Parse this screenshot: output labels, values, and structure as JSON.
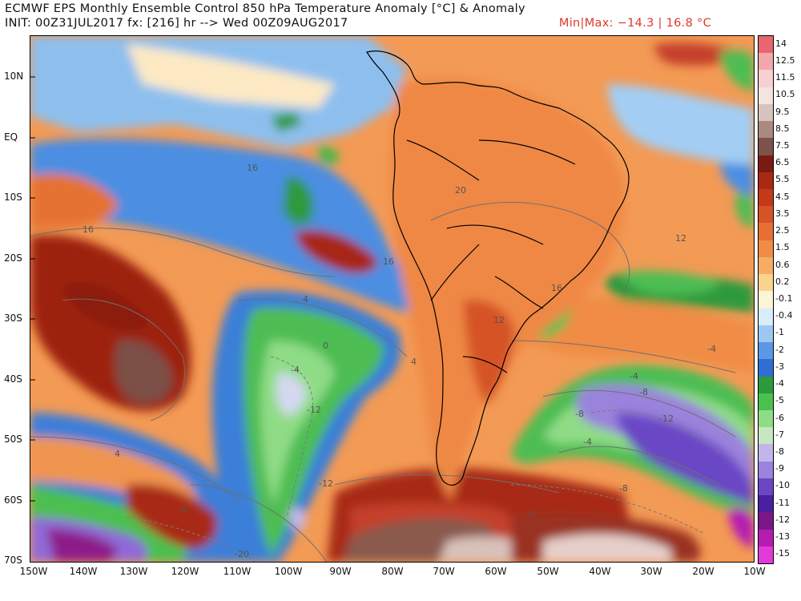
{
  "header": {
    "title": "ECMWF EPS Monthly Ensemble Control 850 hPa Temperature Anomaly [°C] & Anomaly",
    "subtitle": "INIT: 00Z31JUL2017  fx: [216] hr --> Wed 00Z09AUG2017",
    "minmax": "Min|Max: −14.3 | 16.8 °C"
  },
  "map": {
    "lat_labels": [
      "10N",
      "EQ",
      "10S",
      "20S",
      "30S",
      "40S",
      "50S",
      "60S",
      "70S"
    ],
    "lon_labels": [
      "150W",
      "140W",
      "130W",
      "120W",
      "110W",
      "100W",
      "90W",
      "80W",
      "70W",
      "60W",
      "50W",
      "40W",
      "30W",
      "20W",
      "10W"
    ],
    "contour_labels": [
      "16",
      "20",
      "16",
      "12",
      "16",
      "16",
      "4",
      "0",
      "-4",
      "12",
      "-4",
      "-8",
      "-12",
      "-4",
      "-4",
      "-8",
      "-12",
      "-20",
      "4",
      "-4",
      "-8",
      "-12",
      "4",
      "-8"
    ]
  },
  "colorbar": {
    "labels": [
      "14",
      "12.5",
      "11.5",
      "10.5",
      "9.5",
      "8.5",
      "7.5",
      "6.5",
      "5.5",
      "4.5",
      "3.5",
      "2.5",
      "1.5",
      "0.6",
      "0.2",
      "-0.1",
      "-0.4",
      "-1",
      "-2",
      "-3",
      "-4",
      "-5",
      "-6",
      "-7",
      "-8",
      "-9",
      "-10",
      "-11",
      "-12",
      "-13",
      "-15"
    ],
    "colors": [
      "#e8666f",
      "#f3a7ad",
      "#f8cfd2",
      "#f3e4e0",
      "#d7c3bd",
      "#a98a80",
      "#7c5249",
      "#7b1a12",
      "#a82a14",
      "#c23a1a",
      "#d65325",
      "#e76f33",
      "#f08c45",
      "#f6ad63",
      "#f9d48f",
      "#fdf3d6",
      "#d8ecfa",
      "#9cc7f2",
      "#5b97e4",
      "#2f6fd3",
      "#2c9a3a",
      "#4cc04f",
      "#8fdc86",
      "#c5e8c3",
      "#c2b5ec",
      "#9a83dc",
      "#6b47c4",
      "#4a1fa0",
      "#7b1787",
      "#b51db0",
      "#e23ad8"
    ]
  }
}
